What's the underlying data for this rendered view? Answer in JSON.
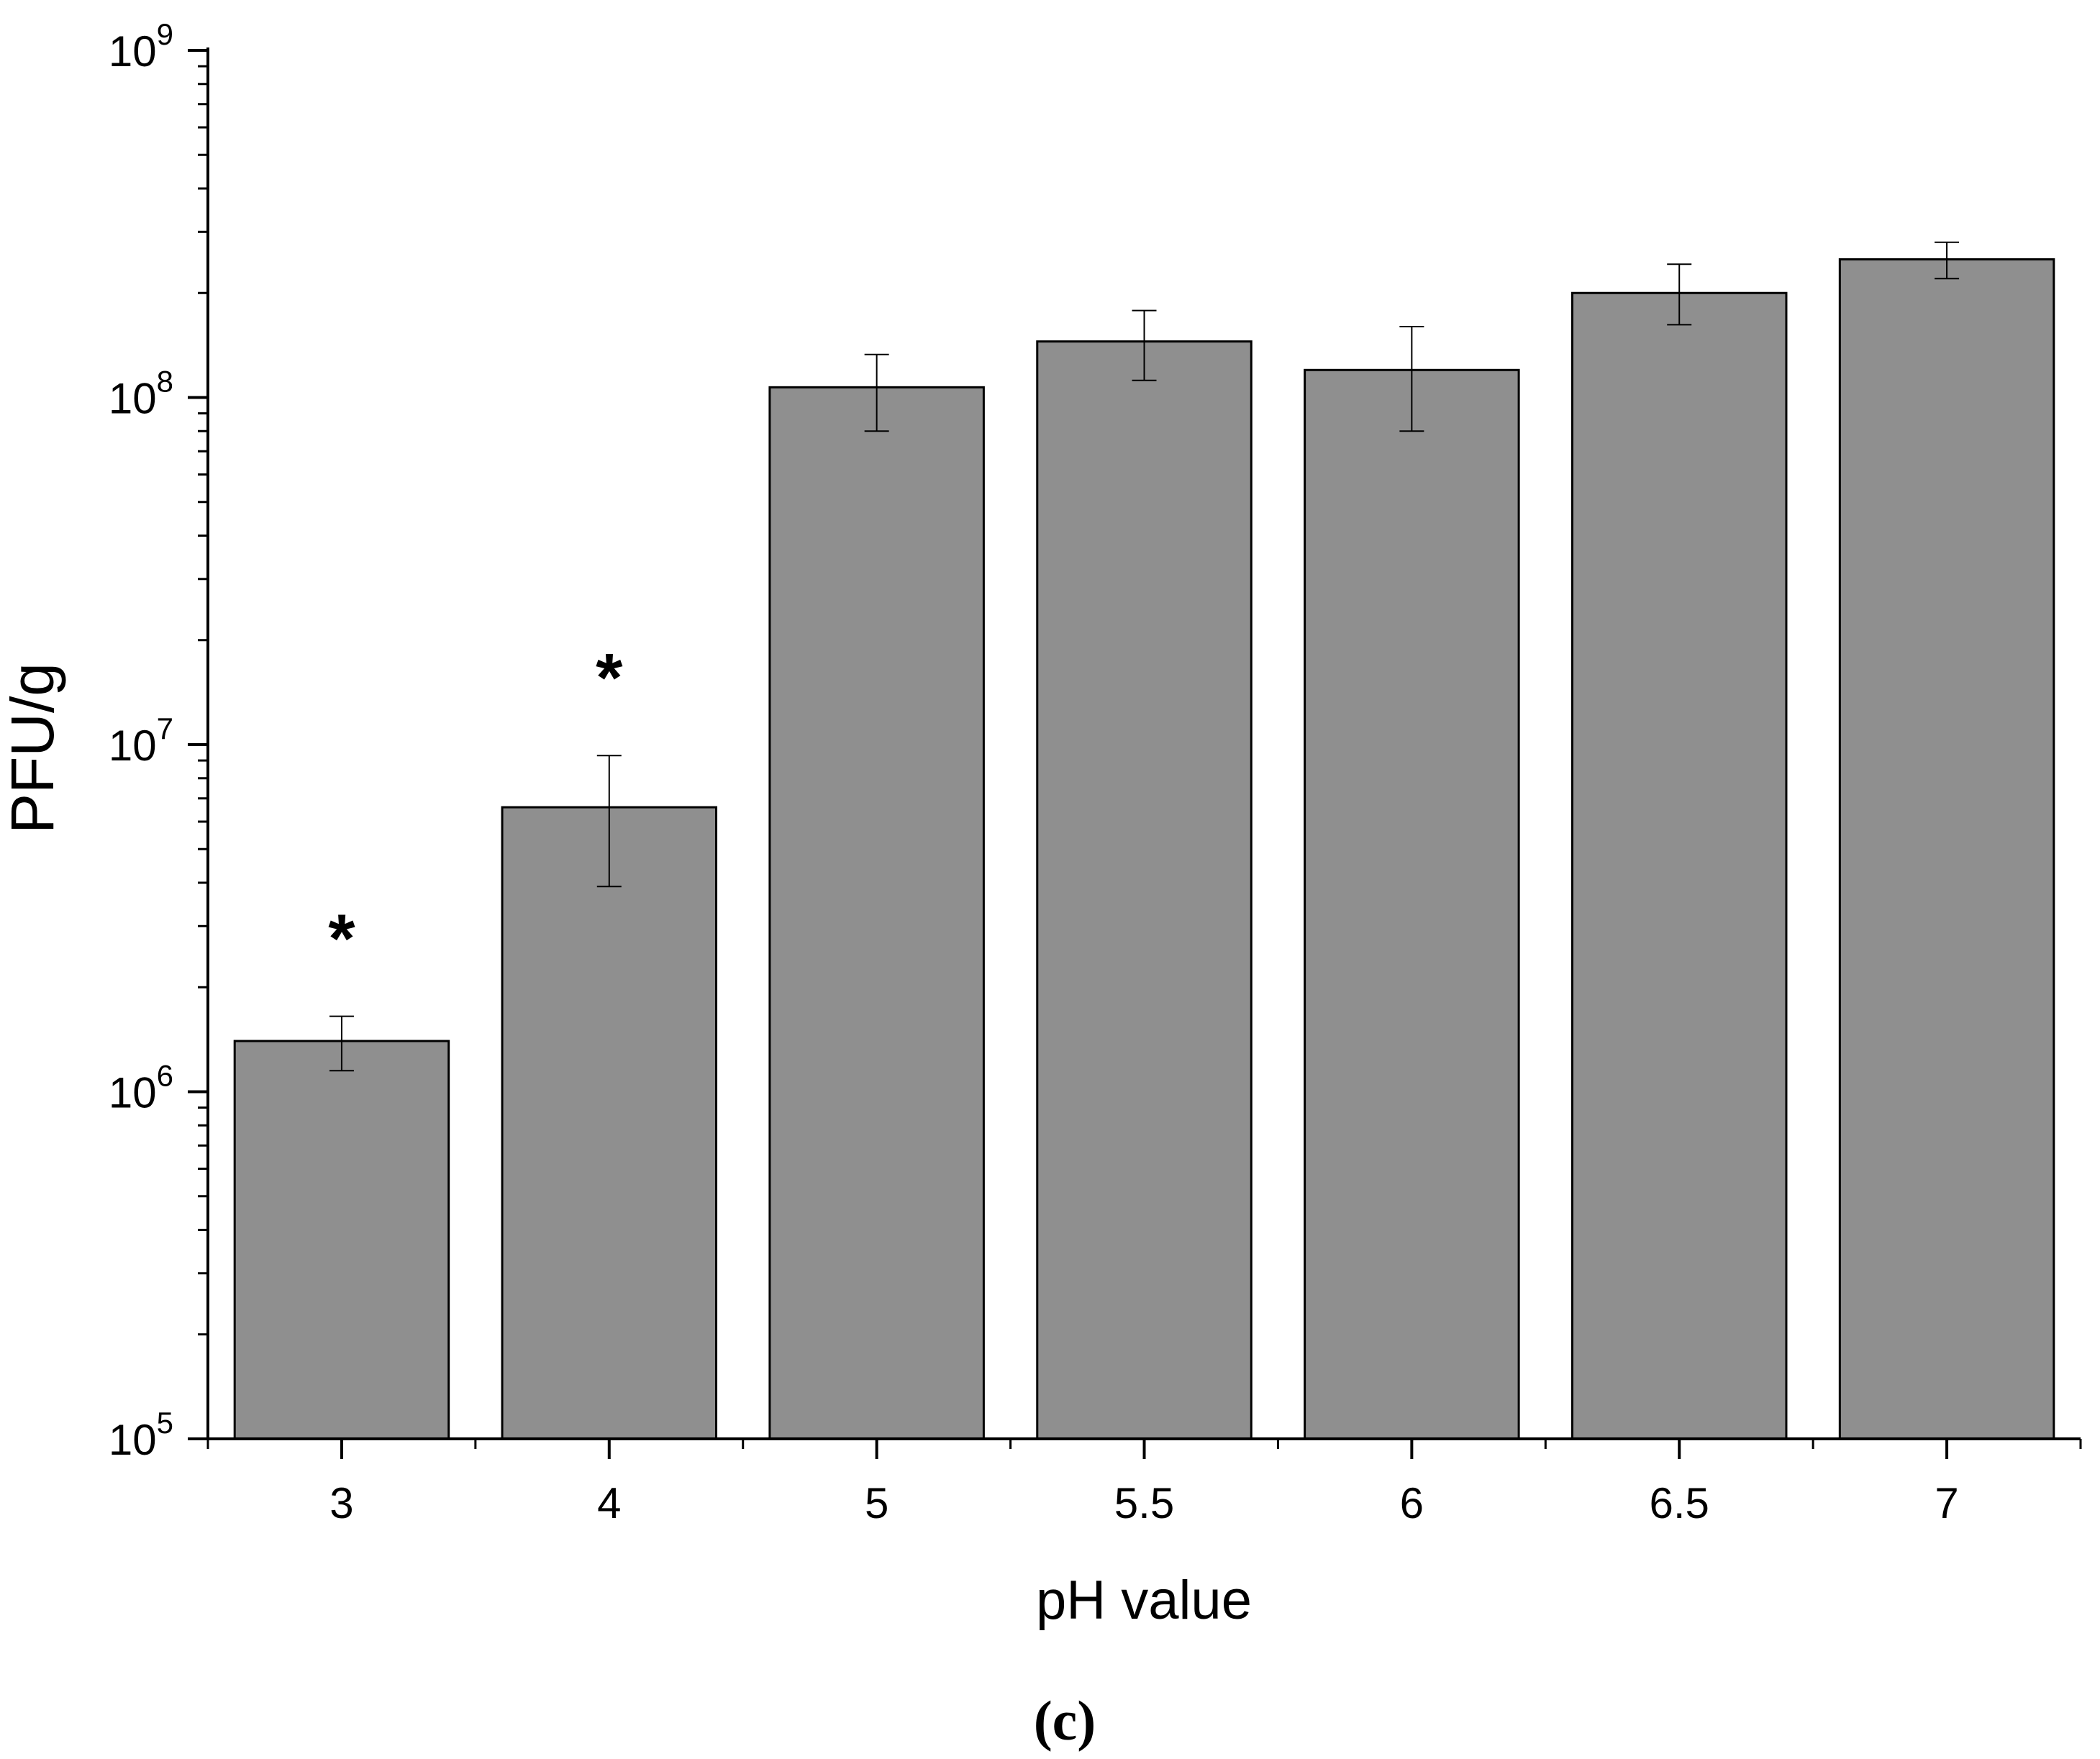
{
  "chart_data": {
    "type": "bar",
    "xlabel": "pH value",
    "ylabel": "PFU/g",
    "yscale": "log",
    "ylim": [
      100000,
      1000000000
    ],
    "y_ticks": [
      {
        "value": 100000,
        "base": "10",
        "exp": "5"
      },
      {
        "value": 1000000,
        "base": "10",
        "exp": "6"
      },
      {
        "value": 10000000,
        "base": "10",
        "exp": "7"
      },
      {
        "value": 100000000,
        "base": "10",
        "exp": "8"
      },
      {
        "value": 1000000000,
        "base": "10",
        "exp": "9"
      }
    ],
    "categories": [
      "3",
      "4",
      "5",
      "5.5",
      "6",
      "6.5",
      "7"
    ],
    "values": [
      1400000,
      6600000,
      107000000,
      145000000,
      120000000,
      200000000,
      250000000
    ],
    "error_low": [
      1150000,
      3900000,
      80000000,
      112000000,
      80000000,
      162000000,
      220000000
    ],
    "error_high": [
      1650000,
      9300000,
      133000000,
      178000000,
      160000000,
      242000000,
      280000000
    ],
    "significance": [
      "*",
      "*",
      "",
      "",
      "",
      "",
      ""
    ],
    "bar_color": "#8f8f8f",
    "grid": false,
    "legend": "none"
  },
  "caption": "(c)"
}
